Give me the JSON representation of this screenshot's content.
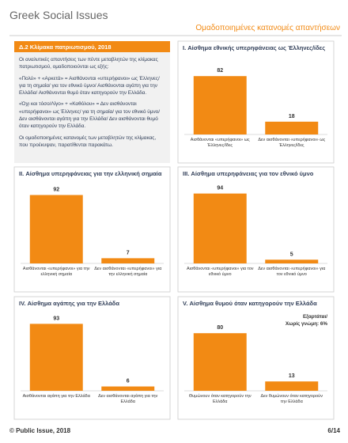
{
  "header": {
    "title": "Greek Social Issues",
    "subtitle": "Ομαδοποιημένες κατανομές απαντήσεων"
  },
  "info_box": {
    "heading": "Δ.2 Κλίμακα πατριωτισμού, 2018",
    "paragraphs": [
      "Οι αναλυτικές απαντήσεις των πέντε μεταβλητών της κλίμακας πατριωτισμού, ομαδοποιούνται ως εξής:",
      "«Πολύ» + «Αρκετά» = Αισθάνονται «υπερήφανοι» ως Έλληνες/ για τη σημαία/ για τον εθνικό ύμνο/ Αισθάνονται αγάπη για την Ελλάδα/ Αισθάνονται θυμό όταν κατηγορούν την Ελλάδα.",
      "«Όχι και τόσο/Λίγο» + «Καθόλου» = Δεν αισθάνονται «υπερήφανοι» ως Έλληνες/ για τη σημαία/ για τον εθνικό ύμνο/ Δεν αισθάνονται αγάπη για την Ελλάδα/ Δεν αισθάνονται θυμό όταν κατηγορούν την Ελλάδα.",
      "Οι ομαδοποιημένες κατανομές των μεταβλητών της κλίμακας, που προέκυψαν, παρατίθενται παρακάτω."
    ]
  },
  "chart_data": [
    {
      "type": "bar",
      "title": "I. Αίσθημα εθνικής υπερηφάνειας ως Έλληνες/ίδες",
      "color": "#f28a14",
      "categories": [
        "Αισθάνονται «υπερήφανοι» ως Έλληνες/ίδες",
        "Δεν αισθάνονται «υπερήφανοι» ως Έλληνες/ίδες"
      ],
      "values": [
        82,
        18
      ]
    },
    {
      "type": "bar",
      "title": "II. Αίσθημα υπερηφάνειας για την ελληνική σημαία",
      "color": "#f28a14",
      "categories": [
        "Αισθάνονται «υπερήφανοι» για την ελληνική σημαία",
        "Δεν αισθάνονται «υπερήφανοι» για την ελληνική σημαία"
      ],
      "values": [
        92,
        7
      ]
    },
    {
      "type": "bar",
      "title": "III. Αίσθημα υπερηφάνειας για τον εθνικό ύμνο",
      "color": "#f28a14",
      "categories": [
        "Αισθάνονται «υπερήφανοι» για τον εθνικό ύμνο",
        "Δεν αισθάνονται «υπερήφανοι» για τον εθνικό ύμνο"
      ],
      "values": [
        94,
        5
      ]
    },
    {
      "type": "bar",
      "title": "IV. Αίσθημα αγάπης για την Ελλάδα",
      "color": "#f28a14",
      "categories": [
        "Αισθάνονται αγάπη για την Ελλάδα",
        "Δεν αισθάνονται αγάπη για την Ελλάδα"
      ],
      "values": [
        93,
        6
      ]
    },
    {
      "type": "bar",
      "title": "V. Αίσθημα θυμού όταν κατηγορούν την Ελλάδα",
      "color": "#f28a14",
      "annotation": [
        "Εξαρτάται/",
        "Χωρίς γνώμη: 6%"
      ],
      "categories": [
        "Θυμώνουν όταν κατηγορούν την Ελλάδα",
        "Δεν θυμώνουν όταν κατηγορούν την Ελλάδα"
      ],
      "values": [
        80,
        13
      ]
    }
  ],
  "footer": {
    "left": "© Public Issue, 2018",
    "right": "6/14"
  }
}
